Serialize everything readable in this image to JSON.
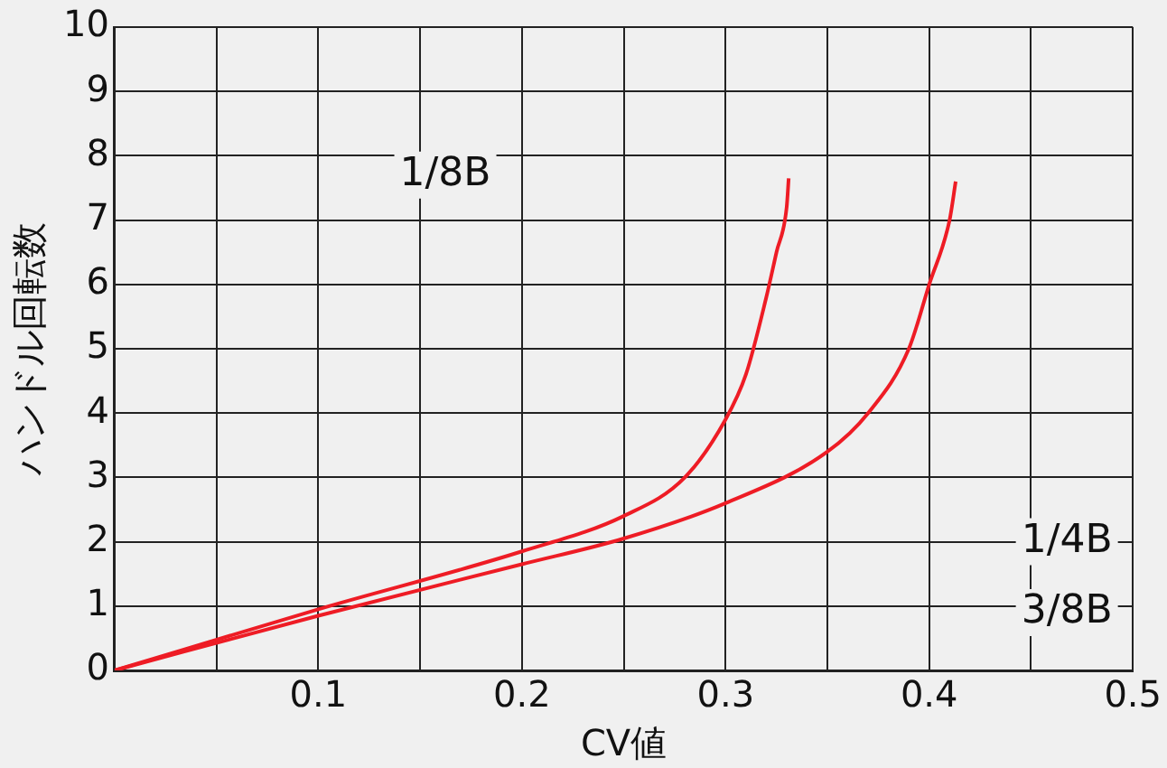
{
  "chart_data": {
    "type": "line",
    "xlabel": "CV値",
    "ylabel": "ハンドル回転数",
    "series": [
      {
        "color": "#ee1c25",
        "x": [
          0,
          0.1,
          0.2,
          0.25,
          0.28,
          0.3,
          0.31,
          0.32,
          0.325,
          0.33,
          0.331
        ],
        "values": [
          0,
          0.95,
          1.85,
          2.4,
          3,
          3.9,
          4.6,
          5.8,
          6.5,
          7.2,
          7.65
        ]
      },
      {
        "color": "#ee1c25",
        "x": [
          0,
          0.1,
          0.2,
          0.25,
          0.3,
          0.35,
          0.37,
          0.39,
          0.4,
          0.41,
          0.413
        ],
        "values": [
          0,
          0.85,
          1.65,
          2.05,
          2.6,
          3.4,
          4,
          5,
          6,
          7,
          7.6
        ]
      }
    ],
    "annotations": [
      "1/8B",
      "1/4B",
      "3/8B"
    ],
    "xlim": [
      0,
      0.5
    ],
    "xticks": [
      {
        "value": 0,
        "label": null
      },
      {
        "value": 0.05,
        "label": null
      },
      0.1,
      {
        "value": 0.15,
        "label": null
      },
      0.2,
      {
        "value": 0.25,
        "label": null
      },
      0.3,
      {
        "value": 0.35,
        "label": null
      },
      0.4,
      {
        "value": 0.45,
        "label": null
      },
      0.5
    ],
    "ylim": [
      0,
      10
    ],
    "yticks": [
      0,
      1,
      2,
      3,
      4,
      5,
      6,
      7,
      8,
      9,
      10
    ],
    "grid": true,
    "legend": false,
    "marker": "none",
    "line_style": "solid"
  }
}
